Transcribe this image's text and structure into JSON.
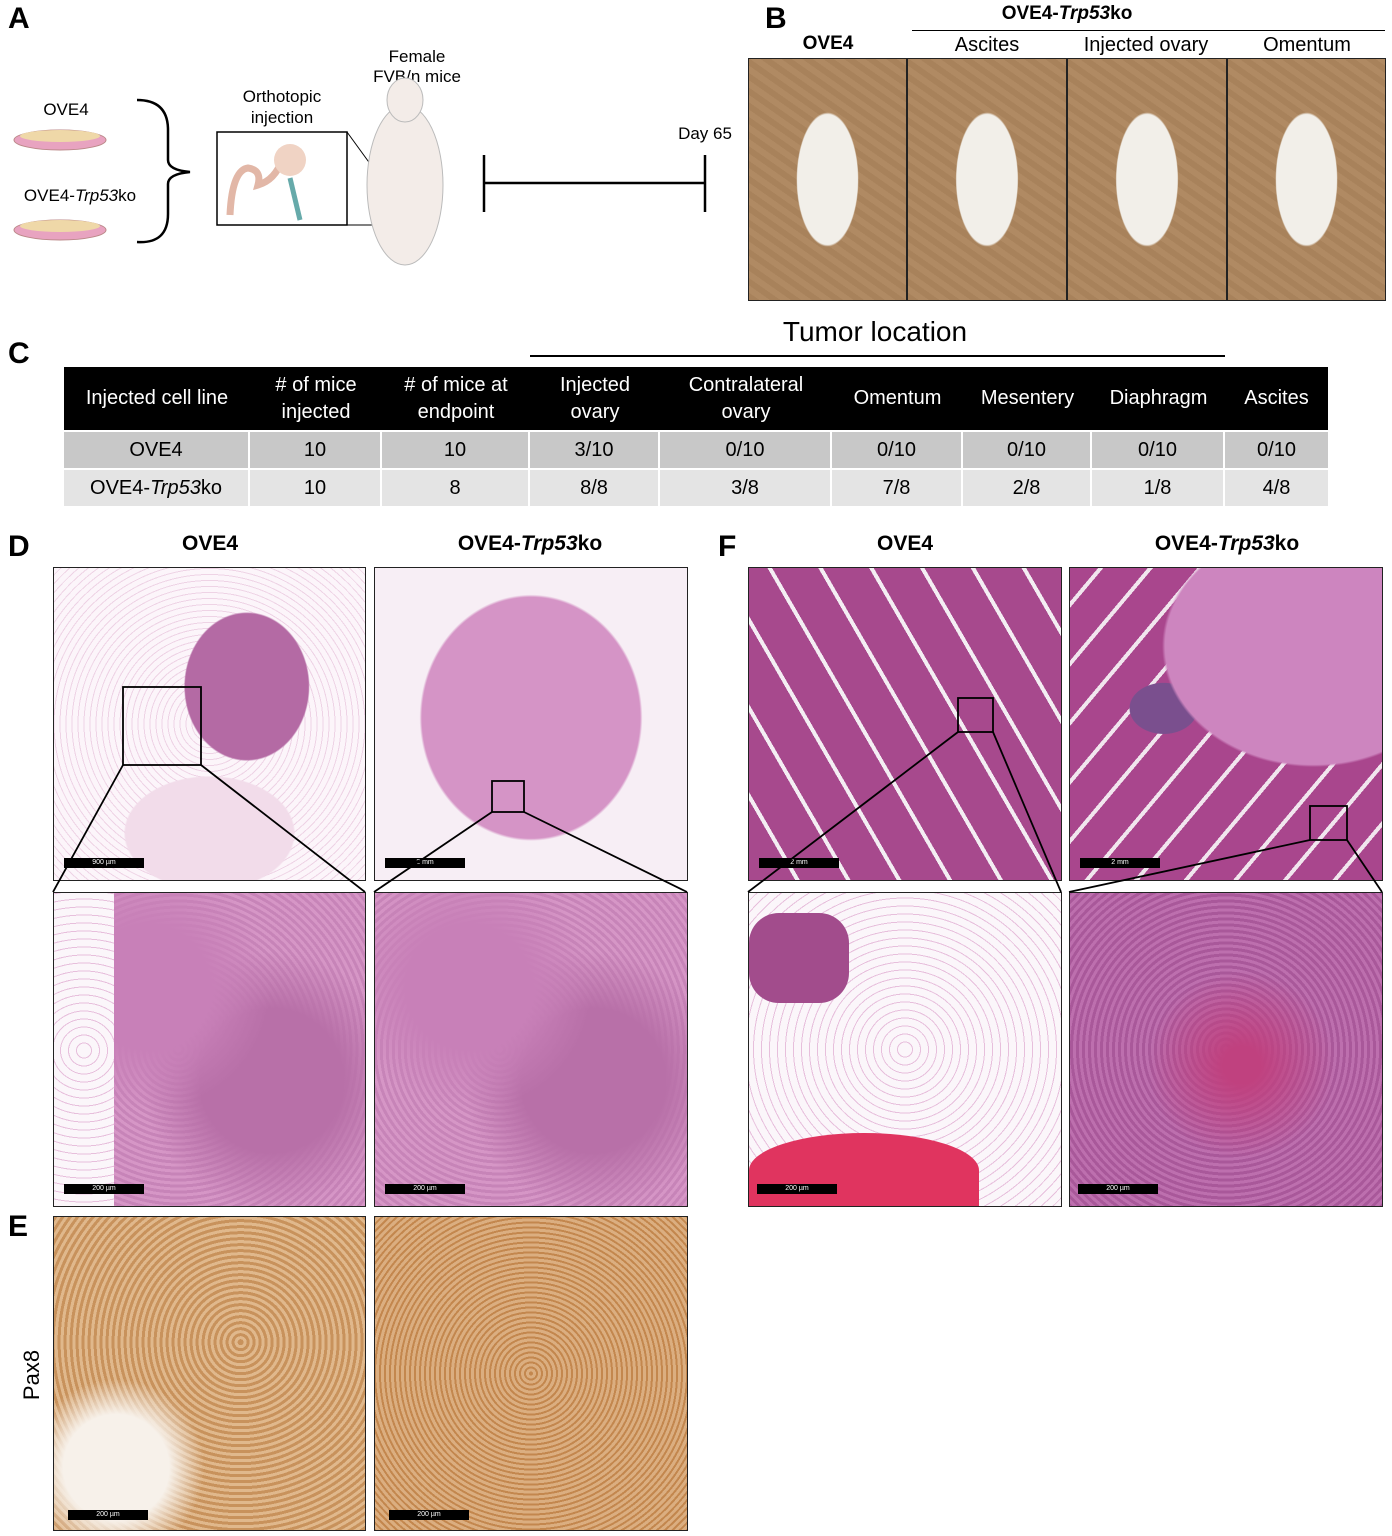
{
  "panel_labels": {
    "A": "A",
    "B": "B",
    "C": "C",
    "D": "D",
    "E": "E",
    "F": "F"
  },
  "panel_a": {
    "cell_line_1": "OVE4",
    "cell_line_2": [
      "OVE4-",
      "Trp53",
      "ko"
    ],
    "injection": [
      "Orthotopic",
      "injection"
    ],
    "mice": [
      "Female",
      "FVB/n mice"
    ],
    "timepoint": "Day 65"
  },
  "panel_b": {
    "control": "OVE4",
    "group": [
      "OVE4-",
      "Trp53",
      "ko"
    ],
    "sites": [
      "Ascites",
      "Injected ovary",
      "Omentum"
    ]
  },
  "panel_c": {
    "title": "Tumor location",
    "columns": [
      "Injected cell line",
      "# of mice injected",
      "# of mice at endpoint",
      "Injected ovary",
      "Contralateral ovary",
      "Omentum",
      "Mesentery",
      "Diaphragm",
      "Ascites"
    ],
    "rows": [
      [
        "OVE4",
        10,
        10,
        "3/10",
        "0/10",
        "0/10",
        "0/10",
        "0/10",
        "0/10"
      ],
      [
        [
          "OVE4-",
          "Trp53",
          "ko"
        ],
        10,
        8,
        "8/8",
        "3/8",
        "7/8",
        "2/8",
        "1/8",
        "4/8"
      ]
    ]
  },
  "panel_d": {
    "columns": [
      "OVE4",
      [
        "OVE4-",
        "Trp53",
        "ko"
      ]
    ],
    "scale_bars": [
      "900 µm",
      "2 mm",
      "200 µm",
      "200 µm"
    ]
  },
  "panel_e": {
    "row_label": "Pax8",
    "scale_bars": [
      "200 µm",
      "200 µm"
    ]
  },
  "panel_f": {
    "columns": [
      "OVE4",
      [
        "OVE4-",
        "Trp53",
        "ko"
      ]
    ],
    "scale_bars": [
      "2 mm",
      "2 mm",
      "200 µm",
      "200 µm"
    ]
  }
}
